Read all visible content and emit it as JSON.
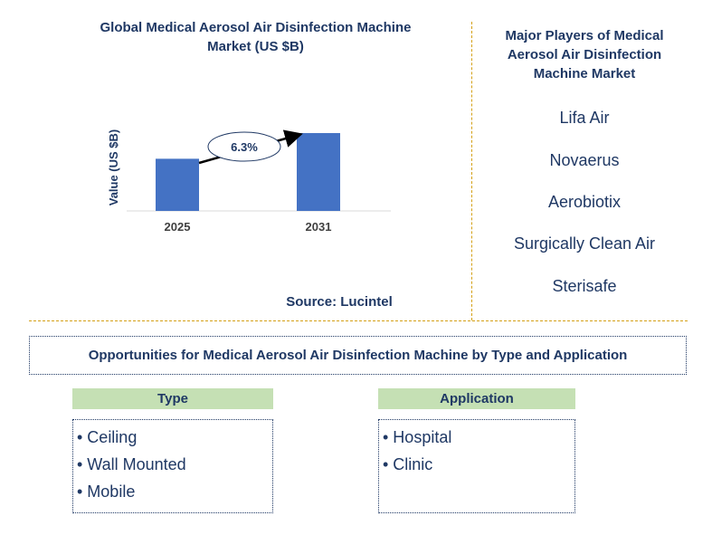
{
  "chart": {
    "title": "Global Medical Aerosol Air Disinfection Machine Market (US $B)",
    "source": "Source: Lucintel"
  },
  "chart_data": {
    "type": "bar",
    "title": "Global Medical Aerosol Air Disinfection Machine Market (US $B)",
    "xlabel": "",
    "ylabel": "Value (US $B)",
    "categories": [
      "2025",
      "2031"
    ],
    "values": [
      0.67,
      1.0
    ],
    "annotation": "6.3%",
    "bar_color": "#4472c4",
    "grid": false
  },
  "players": {
    "title": "Major Players of Medical Aerosol Air Disinfection Machine Market",
    "items": [
      "Lifa Air",
      "Novaerus",
      "Aerobiotix",
      "Surgically Clean Air",
      "Sterisafe"
    ]
  },
  "opportunities": {
    "title": "Opportunities for Medical Aerosol Air Disinfection Machine by Type and Application",
    "type": {
      "header": "Type",
      "items": [
        "• Ceiling",
        "• Wall Mounted",
        "• Mobile"
      ]
    },
    "application": {
      "header": "Application",
      "items": [
        "• Hospital",
        "• Clinic"
      ]
    }
  },
  "colors": {
    "title": "#1f3864",
    "bar": "#4472c4",
    "segment_header": "#c5e0b4",
    "divider": "#d4a017"
  }
}
